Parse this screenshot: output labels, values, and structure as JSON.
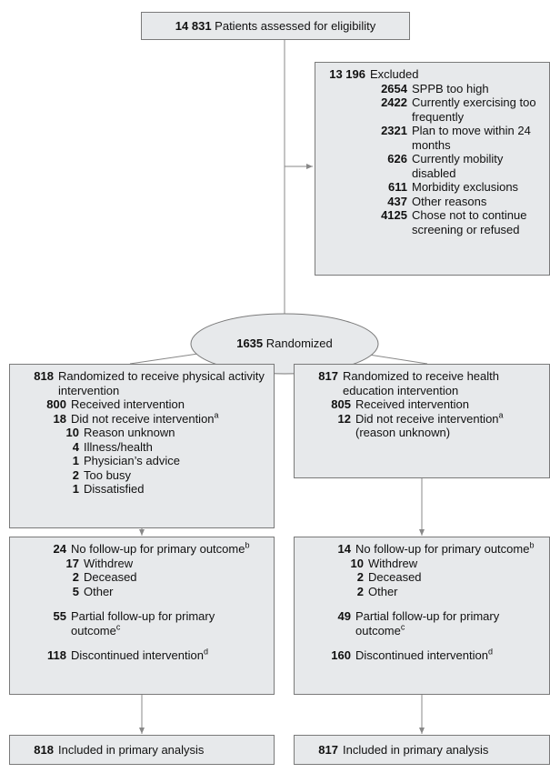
{
  "enrollment": {
    "count": "14 831",
    "label": "Patients assessed for eligibility"
  },
  "excluded": {
    "count": "13 196",
    "label": "Excluded",
    "reasons": [
      {
        "count": "2654",
        "label": "SPPB too high"
      },
      {
        "count": "2422",
        "label": "Currently exercising too frequently"
      },
      {
        "count": "2321",
        "label": "Plan to move within 24 months"
      },
      {
        "count": "626",
        "label": "Currently mobility disabled"
      },
      {
        "count": "611",
        "label": "Morbidity exclusions"
      },
      {
        "count": "437",
        "label": "Other reasons"
      },
      {
        "count": "4125",
        "label": "Chose not to continue screening or refused"
      }
    ]
  },
  "randomized": {
    "count": "1635",
    "label": "Randomized"
  },
  "arms": [
    {
      "allocation": {
        "count": "818",
        "label": "Randomized to receive physical activity intervention"
      },
      "received": {
        "count": "800",
        "label": "Received intervention"
      },
      "not_received": {
        "count": "18",
        "label": "Did not receive intervention",
        "footnote": "a",
        "reasons": [
          {
            "count": "10",
            "label": "Reason unknown"
          },
          {
            "count": "4",
            "label": "Illness/health"
          },
          {
            "count": "1",
            "label": "Physician’s advice"
          },
          {
            "count": "2",
            "label": "Too busy"
          },
          {
            "count": "1",
            "label": "Dissatisfied"
          }
        ]
      },
      "no_followup": {
        "count": "24",
        "label": "No follow-up for primary outcome",
        "footnote": "b",
        "reasons": [
          {
            "count": "17",
            "label": "Withdrew"
          },
          {
            "count": "2",
            "label": "Deceased"
          },
          {
            "count": "5",
            "label": "Other"
          }
        ]
      },
      "partial_followup": {
        "count": "55",
        "label": "Partial follow-up for primary outcome",
        "footnote": "c"
      },
      "discontinued": {
        "count": "118",
        "label": "Discontinued intervention",
        "footnote": "d"
      },
      "analysis": {
        "count": "818",
        "label": "Included in primary analysis"
      }
    },
    {
      "allocation": {
        "count": "817",
        "label": "Randomized to receive health education intervention"
      },
      "received": {
        "count": "805",
        "label": "Received intervention"
      },
      "not_received": {
        "count": "12",
        "label": "Did not receive intervention",
        "footnote": "a",
        "note": "(reason unknown)"
      },
      "no_followup": {
        "count": "14",
        "label": "No follow-up for primary outcome",
        "footnote": "b",
        "reasons": [
          {
            "count": "10",
            "label": "Withdrew"
          },
          {
            "count": "2",
            "label": "Deceased"
          },
          {
            "count": "2",
            "label": "Other"
          }
        ]
      },
      "partial_followup": {
        "count": "49",
        "label": "Partial follow-up for primary outcome",
        "footnote": "c"
      },
      "discontinued": {
        "count": "160",
        "label": "Discontinued intervention",
        "footnote": "d"
      },
      "analysis": {
        "count": "817",
        "label": "Included in primary analysis"
      }
    }
  ]
}
